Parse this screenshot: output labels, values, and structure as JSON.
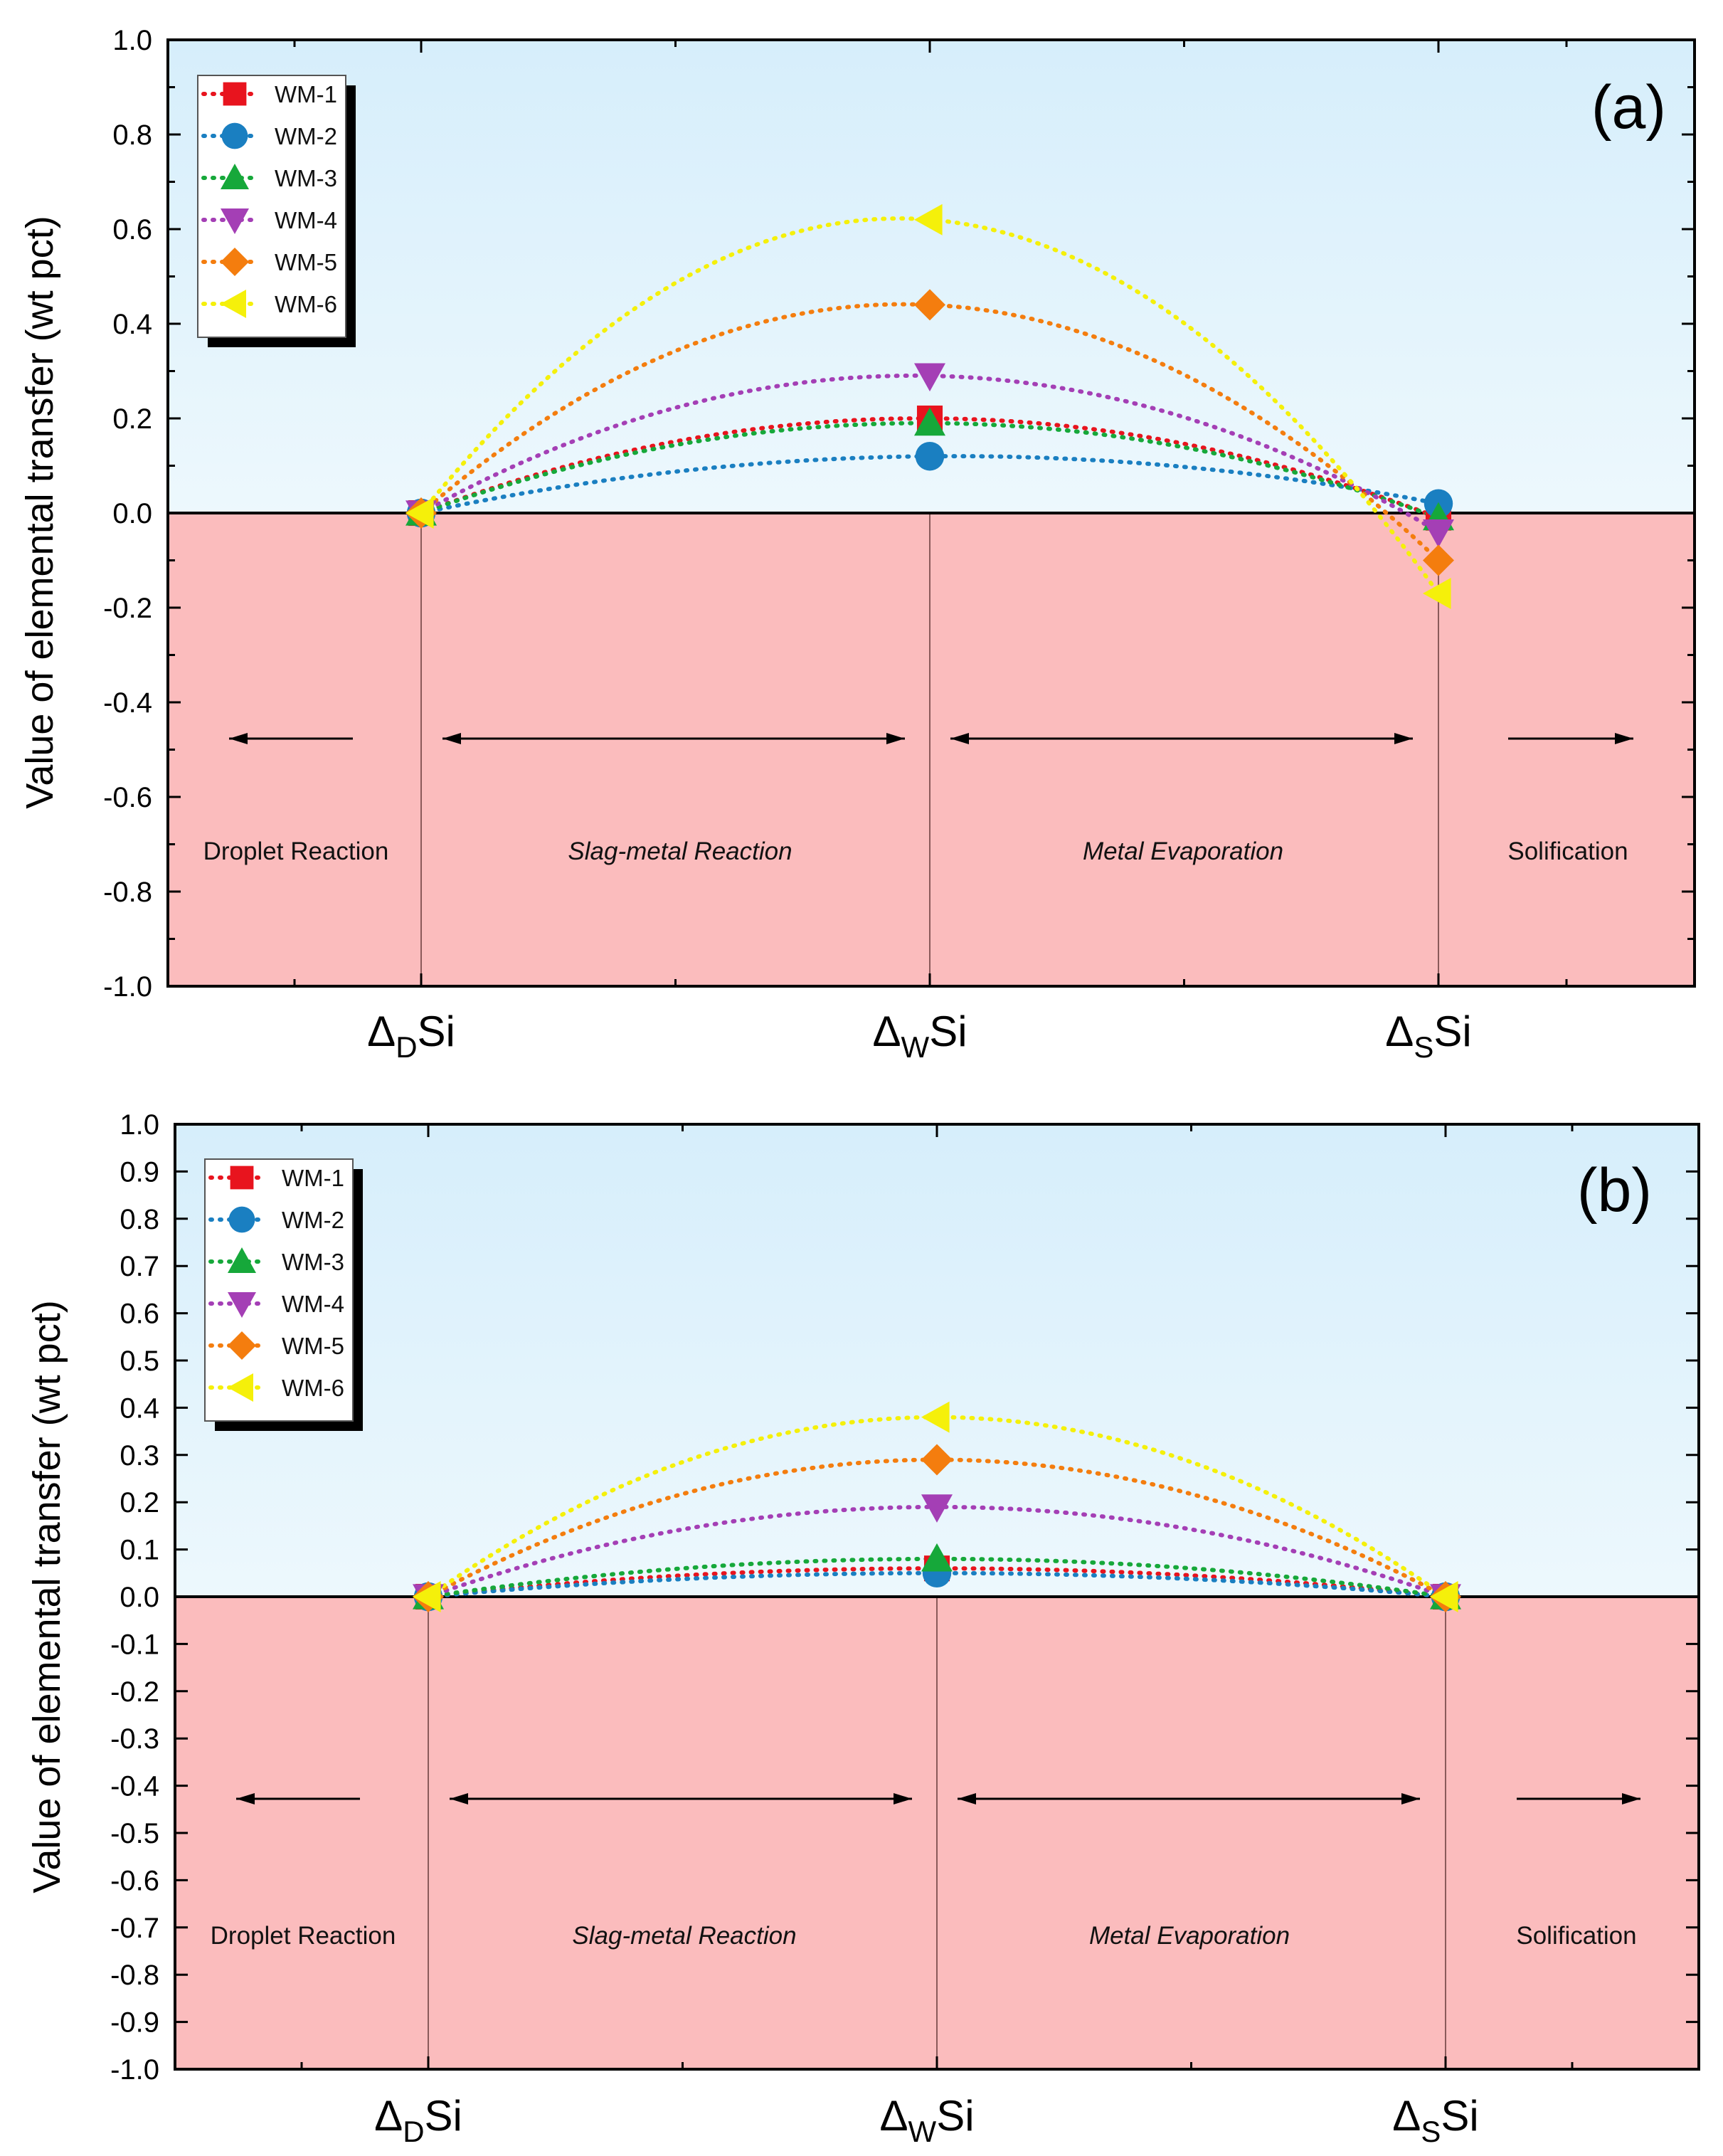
{
  "chart_data": [
    {
      "type": "line",
      "panel_label": "(a)",
      "ylabel": "Value of elemental transfer (wt pct)",
      "ylim": [
        -1.0,
        1.0
      ],
      "yticks": [
        "1.0",
        "0.8",
        "0.6",
        "0.4",
        "0.2",
        "0.0",
        "-0.2",
        "-0.4",
        "-0.6",
        "-0.8",
        "-1.0"
      ],
      "categories": [
        {
          "main": "Δ",
          "sub": "D",
          "tail": "Si"
        },
        {
          "main": "Δ",
          "sub": "W",
          "tail": "Si"
        },
        {
          "main": "Δ",
          "sub": "S",
          "tail": "Si"
        }
      ],
      "regions": [
        {
          "label": "Droplet Reaction",
          "italic": false,
          "arrow": "left"
        },
        {
          "label": "Slag-metal Reaction",
          "italic": true,
          "arrow": "both"
        },
        {
          "label": "Metal Evaporation",
          "italic": true,
          "arrow": "both"
        },
        {
          "label": "Solification",
          "italic": false,
          "arrow": "right"
        }
      ],
      "legend_position": "top-left",
      "series": [
        {
          "name": "WM-1",
          "color": "#e8141e",
          "marker": "square",
          "values": [
            0.0,
            0.2,
            -0.01
          ]
        },
        {
          "name": "WM-2",
          "color": "#1a7fc1",
          "marker": "circle",
          "values": [
            0.0,
            0.12,
            0.02
          ]
        },
        {
          "name": "WM-3",
          "color": "#16a83a",
          "marker": "triangle-up",
          "values": [
            0.0,
            0.19,
            -0.01
          ]
        },
        {
          "name": "WM-4",
          "color": "#a43fb5",
          "marker": "triangle-down",
          "values": [
            0.0,
            0.29,
            -0.04
          ]
        },
        {
          "name": "WM-5",
          "color": "#f47d0e",
          "marker": "diamond",
          "values": [
            0.0,
            0.44,
            -0.1
          ]
        },
        {
          "name": "WM-6",
          "color": "#f5f00a",
          "marker": "triangle-left",
          "values": [
            0.0,
            0.62,
            -0.17
          ]
        }
      ]
    },
    {
      "type": "line",
      "panel_label": "(b)",
      "ylabel": "Value of elemental transfer (wt pct)",
      "ylim": [
        -1.0,
        1.0
      ],
      "yticks": [
        "1.0",
        "0.9",
        "0.8",
        "0.7",
        "0.6",
        "0.5",
        "0.4",
        "0.3",
        "0.2",
        "0.1",
        "0.0",
        "-0.1",
        "-0.2",
        "-0.3",
        "-0.4",
        "-0.5",
        "-0.6",
        "-0.7",
        "-0.8",
        "-0.9",
        "-1.0"
      ],
      "categories": [
        {
          "main": "Δ",
          "sub": "D",
          "tail": "Si"
        },
        {
          "main": "Δ",
          "sub": "W",
          "tail": "Si"
        },
        {
          "main": "Δ",
          "sub": "S",
          "tail": "Si"
        }
      ],
      "regions": [
        {
          "label": "Droplet Reaction",
          "italic": false,
          "arrow": "left"
        },
        {
          "label": "Slag-metal Reaction",
          "italic": true,
          "arrow": "both"
        },
        {
          "label": "Metal Evaporation",
          "italic": true,
          "arrow": "both"
        },
        {
          "label": "Solification",
          "italic": false,
          "arrow": "right"
        }
      ],
      "legend_position": "top-left",
      "series": [
        {
          "name": "WM-1",
          "color": "#e8141e",
          "marker": "square",
          "values": [
            0.0,
            0.06,
            0.0
          ]
        },
        {
          "name": "WM-2",
          "color": "#1a7fc1",
          "marker": "circle",
          "values": [
            0.0,
            0.05,
            0.0
          ]
        },
        {
          "name": "WM-3",
          "color": "#16a83a",
          "marker": "triangle-up",
          "values": [
            0.0,
            0.08,
            0.0
          ]
        },
        {
          "name": "WM-4",
          "color": "#a43fb5",
          "marker": "triangle-down",
          "values": [
            0.0,
            0.19,
            0.0
          ]
        },
        {
          "name": "WM-5",
          "color": "#f47d0e",
          "marker": "diamond",
          "values": [
            0.0,
            0.29,
            0.0
          ]
        },
        {
          "name": "WM-6",
          "color": "#f5f00a",
          "marker": "triangle-left",
          "values": [
            0.0,
            0.38,
            0.0
          ]
        }
      ]
    }
  ]
}
